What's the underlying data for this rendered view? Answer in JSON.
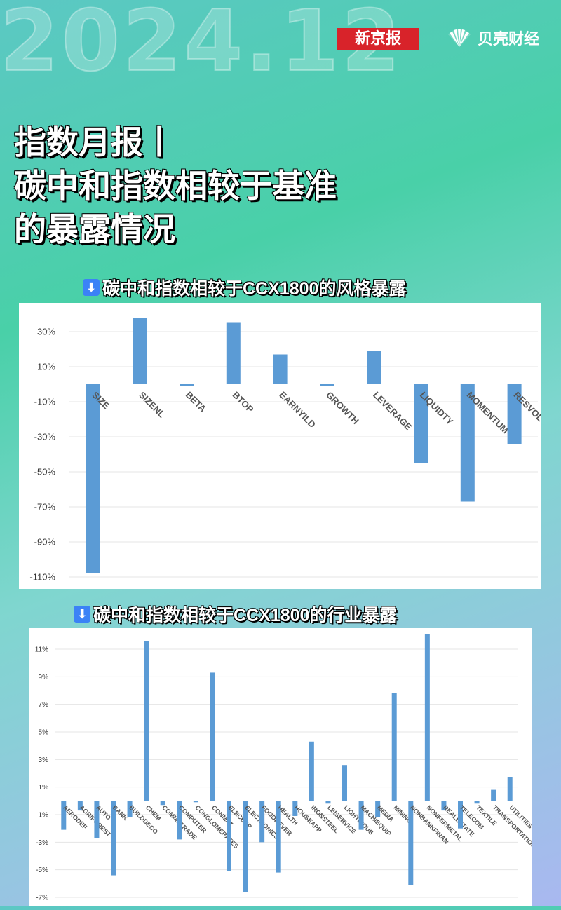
{
  "header": {
    "year": "2024.12",
    "brand_left": "新京报",
    "brand_right": "贝壳财经",
    "headline_lines": [
      "指数月报丨",
      "碳中和指数相较于基准",
      "的暴露情况"
    ]
  },
  "charts": {
    "style": {
      "title": "碳中和指数相较于CCX1800的风格暴露",
      "arrow": "⬇"
    },
    "industry": {
      "title": "碳中和指数相较于CCX1800的行业暴露",
      "arrow": "⬇"
    }
  },
  "colors": {
    "bar": "#5b9bd5",
    "grid": "#e4e4e4"
  },
  "chart_data": [
    {
      "type": "bar",
      "title": "碳中和指数相较于CCX1800的风格暴露",
      "categories": [
        "SIZE",
        "SIZENL",
        "BETA",
        "BTOP",
        "EARNYILD",
        "GROWTH",
        "LEVERAGE",
        "LIQUIDTY",
        "MOMENTUM",
        "RESVOL"
      ],
      "values": [
        -108,
        38,
        -1,
        35,
        17,
        -1,
        19,
        -45,
        -67,
        -34
      ],
      "unit": "%",
      "ylim": [
        -110,
        38
      ],
      "yticks": [
        30,
        10,
        -10,
        -30,
        -50,
        -70,
        -90,
        -110
      ],
      "ytick_labels": [
        "30%",
        "10%",
        "-10%",
        "-30%",
        "-50%",
        "-70%",
        "-90%",
        "-110%"
      ],
      "grid": true,
      "legend": "none"
    },
    {
      "type": "bar",
      "title": "碳中和指数相较于CCX1800的行业暴露",
      "categories": [
        "AERODEF",
        "AGRIFOREST",
        "AUTO",
        "BANK",
        "BUILDDECO",
        "CHEM",
        "COMMETRADE",
        "COMPUTER",
        "CONGLOMERATES",
        "CONMAT",
        "ELECEQP",
        "ELECTRONICS",
        "FOODBEVER",
        "HEALTH",
        "HOUSEAPP",
        "IRONSTEEL",
        "LEISERVICE",
        "LIGHTINDUS",
        "MACHIEQUIP",
        "MEDIA",
        "MINING",
        "NONBANKFINAN",
        "NONFERMETAL",
        "REALESTATE",
        "TELECOM",
        "TEXTILE",
        "TRANSPORTATION",
        "UTILITIES"
      ],
      "values": [
        -2.1,
        -0.7,
        -2.7,
        -5.4,
        -1.2,
        11.6,
        -0.3,
        -2.8,
        -0.1,
        9.3,
        -5.1,
        -6.6,
        -3.0,
        -5.2,
        -1.1,
        4.3,
        -0.2,
        2.6,
        -2.1,
        -1.2,
        7.8,
        -6.1,
        12.1,
        -0.7,
        -2.0,
        -0.2,
        0.8,
        1.7
      ],
      "unit": "%",
      "ylim": [
        -7,
        12.1
      ],
      "yticks": [
        11,
        9,
        7,
        5,
        3,
        1,
        -1,
        -3,
        -5,
        -7
      ],
      "ytick_labels": [
        "11%",
        "9%",
        "7%",
        "5%",
        "3%",
        "1%",
        "-1%",
        "-3%",
        "-5%",
        "-7%"
      ],
      "grid": true,
      "legend": "none"
    }
  ]
}
